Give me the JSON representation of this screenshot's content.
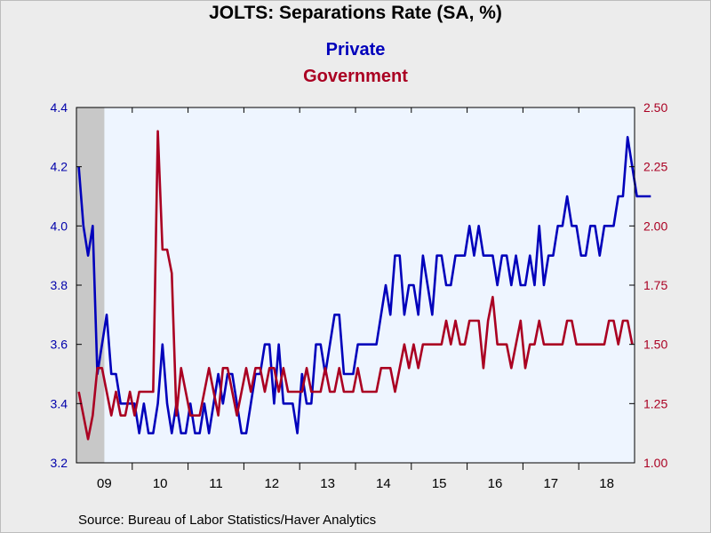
{
  "chart_data": {
    "type": "line",
    "title": "JOLTS: Separations Rate (SA, %)",
    "source": "Source:  Bureau of Labor Statistics/Haver Analytics",
    "x_start": "2009-01",
    "x_end": "2018-12",
    "xticks": [
      "09",
      "10",
      "11",
      "12",
      "13",
      "14",
      "15",
      "16",
      "17",
      "18"
    ],
    "recession_shading": {
      "start": "2009-01",
      "end": "2009-06",
      "color": "#c8c8c8"
    },
    "background_color": "#eef5ff",
    "left_axis": {
      "ylim": [
        3.2,
        4.4
      ],
      "ticks": [
        "3.2",
        "3.4",
        "3.6",
        "3.8",
        "4.0",
        "4.2",
        "4.4"
      ],
      "color": "#0000aa"
    },
    "right_axis": {
      "ylim": [
        1.0,
        2.5
      ],
      "ticks": [
        "1.00",
        "1.25",
        "1.50",
        "1.75",
        "2.00",
        "2.25",
        "2.50"
      ],
      "color": "#aa0022"
    },
    "series": [
      {
        "name": "Private",
        "axis": "left",
        "color": "#0000bb",
        "values": [
          4.2,
          4.0,
          3.9,
          4.0,
          3.5,
          3.6,
          3.7,
          3.5,
          3.5,
          3.4,
          3.4,
          3.4,
          3.4,
          3.3,
          3.4,
          3.3,
          3.3,
          3.4,
          3.6,
          3.4,
          3.3,
          3.4,
          3.3,
          3.3,
          3.4,
          3.3,
          3.3,
          3.4,
          3.3,
          3.4,
          3.5,
          3.4,
          3.5,
          3.5,
          3.4,
          3.3,
          3.3,
          3.4,
          3.5,
          3.5,
          3.6,
          3.6,
          3.4,
          3.6,
          3.4,
          3.4,
          3.4,
          3.3,
          3.5,
          3.4,
          3.4,
          3.6,
          3.6,
          3.5,
          3.6,
          3.7,
          3.7,
          3.5,
          3.5,
          3.5,
          3.6,
          3.6,
          3.6,
          3.6,
          3.6,
          3.7,
          3.8,
          3.7,
          3.9,
          3.9,
          3.7,
          3.8,
          3.8,
          3.7,
          3.9,
          3.8,
          3.7,
          3.9,
          3.9,
          3.8,
          3.8,
          3.9,
          3.9,
          3.9,
          4.0,
          3.9,
          4.0,
          3.9,
          3.9,
          3.9,
          3.8,
          3.9,
          3.9,
          3.8,
          3.9,
          3.8,
          3.8,
          3.9,
          3.8,
          4.0,
          3.8,
          3.9,
          3.9,
          4.0,
          4.0,
          4.1,
          4.0,
          4.0,
          3.9,
          3.9,
          4.0,
          4.0,
          3.9,
          4.0,
          4.0,
          4.0,
          4.1,
          4.1,
          4.3,
          4.2,
          4.1,
          4.1,
          4.1,
          4.1
        ]
      },
      {
        "name": "Government",
        "axis": "right",
        "color": "#aa0022",
        "values": [
          1.3,
          1.2,
          1.1,
          1.2,
          1.4,
          1.4,
          1.3,
          1.2,
          1.3,
          1.2,
          1.2,
          1.3,
          1.2,
          1.3,
          1.3,
          1.3,
          1.3,
          2.4,
          1.9,
          1.9,
          1.8,
          1.2,
          1.4,
          1.3,
          1.2,
          1.2,
          1.2,
          1.3,
          1.4,
          1.3,
          1.2,
          1.4,
          1.4,
          1.3,
          1.2,
          1.3,
          1.4,
          1.3,
          1.4,
          1.4,
          1.3,
          1.4,
          1.4,
          1.3,
          1.4,
          1.3,
          1.3,
          1.3,
          1.3,
          1.4,
          1.3,
          1.3,
          1.3,
          1.4,
          1.3,
          1.3,
          1.4,
          1.3,
          1.3,
          1.3,
          1.4,
          1.3,
          1.3,
          1.3,
          1.3,
          1.4,
          1.4,
          1.4,
          1.3,
          1.4,
          1.5,
          1.4,
          1.5,
          1.4,
          1.5,
          1.5,
          1.5,
          1.5,
          1.5,
          1.6,
          1.5,
          1.6,
          1.5,
          1.5,
          1.6,
          1.6,
          1.6,
          1.4,
          1.6,
          1.7,
          1.5,
          1.5,
          1.5,
          1.4,
          1.5,
          1.6,
          1.4,
          1.5,
          1.5,
          1.6,
          1.5,
          1.5,
          1.5,
          1.5,
          1.5,
          1.6,
          1.6,
          1.5,
          1.5,
          1.5,
          1.5,
          1.5,
          1.5,
          1.5,
          1.6,
          1.6,
          1.5,
          1.6,
          1.6,
          1.5
        ]
      }
    ]
  }
}
